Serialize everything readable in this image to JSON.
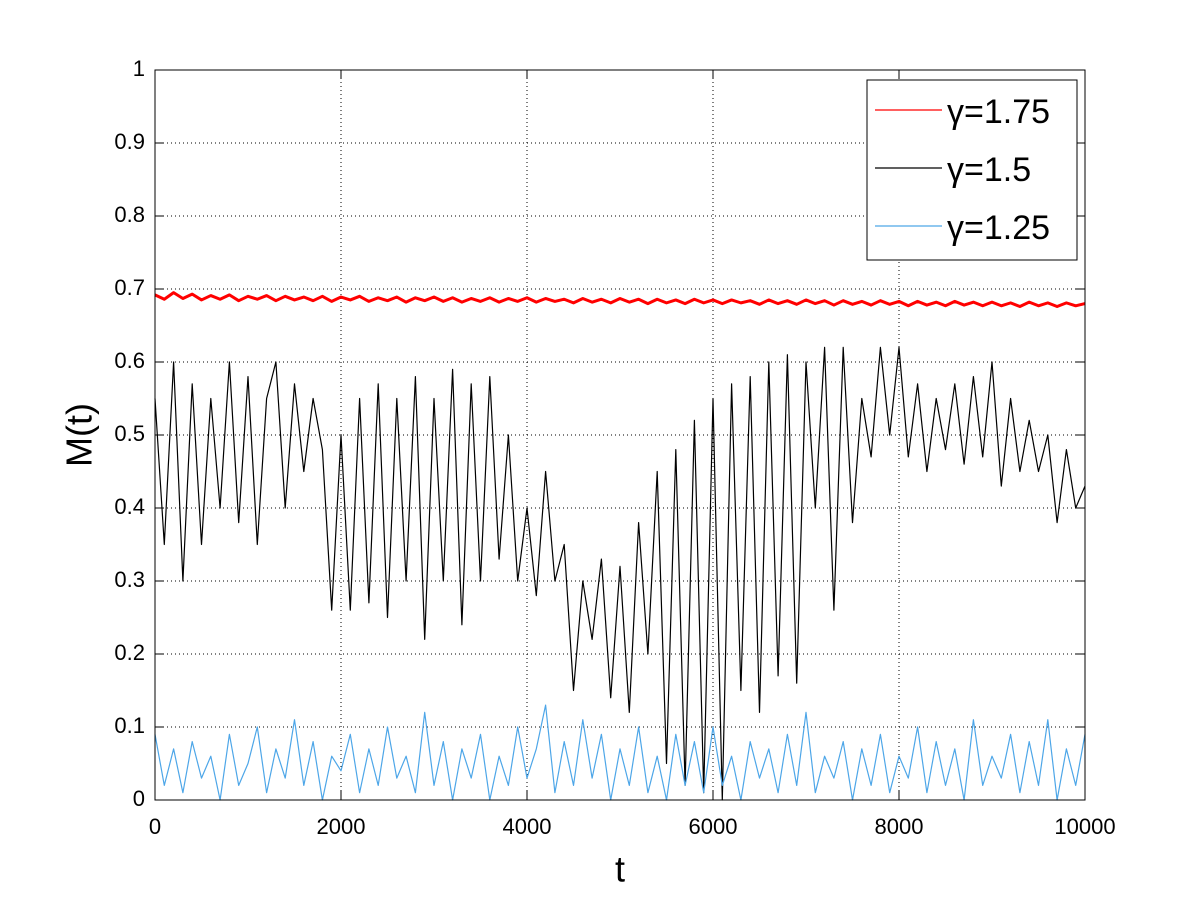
{
  "chart_data": {
    "type": "line",
    "xlabel": "t",
    "ylabel": "M(t)",
    "xlim": [
      0,
      10000
    ],
    "xticks": [
      0,
      2000,
      4000,
      6000,
      8000,
      10000
    ],
    "ylim": [
      0,
      1
    ],
    "yticks": [
      0,
      0.1,
      0.2,
      0.3,
      0.4,
      0.5,
      0.6,
      0.7,
      0.8,
      0.9,
      1
    ],
    "grid": true,
    "legend_position": "northeast",
    "x": [
      0,
      100,
      200,
      300,
      400,
      500,
      600,
      700,
      800,
      900,
      1000,
      1100,
      1200,
      1300,
      1400,
      1500,
      1600,
      1700,
      1800,
      1900,
      2000,
      2100,
      2200,
      2300,
      2400,
      2500,
      2600,
      2700,
      2800,
      2900,
      3000,
      3100,
      3200,
      3300,
      3400,
      3500,
      3600,
      3700,
      3800,
      3900,
      4000,
      4100,
      4200,
      4300,
      4400,
      4500,
      4600,
      4700,
      4800,
      4900,
      5000,
      5100,
      5200,
      5300,
      5400,
      5500,
      5600,
      5700,
      5800,
      5900,
      6000,
      6100,
      6200,
      6300,
      6400,
      6500,
      6600,
      6700,
      6800,
      6900,
      7000,
      7100,
      7200,
      7300,
      7400,
      7500,
      7600,
      7700,
      7800,
      7900,
      8000,
      8100,
      8200,
      8300,
      8400,
      8500,
      8600,
      8700,
      8800,
      8900,
      9000,
      9100,
      9200,
      9300,
      9400,
      9500,
      9600,
      9700,
      9800,
      9900,
      10000
    ],
    "series": [
      {
        "name": "γ=1.75",
        "color": "#ff0000",
        "values": [
          0.692,
          0.686,
          0.695,
          0.687,
          0.693,
          0.685,
          0.691,
          0.686,
          0.692,
          0.684,
          0.69,
          0.686,
          0.691,
          0.684,
          0.69,
          0.685,
          0.689,
          0.684,
          0.69,
          0.683,
          0.689,
          0.685,
          0.69,
          0.683,
          0.688,
          0.684,
          0.689,
          0.682,
          0.688,
          0.684,
          0.689,
          0.683,
          0.688,
          0.682,
          0.687,
          0.683,
          0.688,
          0.682,
          0.687,
          0.683,
          0.688,
          0.682,
          0.687,
          0.683,
          0.686,
          0.681,
          0.687,
          0.682,
          0.686,
          0.681,
          0.687,
          0.682,
          0.686,
          0.68,
          0.686,
          0.681,
          0.685,
          0.68,
          0.686,
          0.681,
          0.685,
          0.68,
          0.685,
          0.681,
          0.684,
          0.679,
          0.685,
          0.68,
          0.684,
          0.679,
          0.685,
          0.68,
          0.684,
          0.678,
          0.684,
          0.679,
          0.683,
          0.678,
          0.684,
          0.679,
          0.683,
          0.677,
          0.683,
          0.678,
          0.682,
          0.677,
          0.683,
          0.678,
          0.682,
          0.677,
          0.682,
          0.677,
          0.681,
          0.676,
          0.682,
          0.677,
          0.681,
          0.676,
          0.681,
          0.677,
          0.68
        ]
      },
      {
        "name": "γ=1.5",
        "color": "#000000",
        "values": [
          0.55,
          0.35,
          0.6,
          0.3,
          0.57,
          0.35,
          0.55,
          0.4,
          0.6,
          0.38,
          0.58,
          0.35,
          0.55,
          0.6,
          0.4,
          0.57,
          0.45,
          0.55,
          0.48,
          0.26,
          0.5,
          0.26,
          0.55,
          0.27,
          0.57,
          0.25,
          0.55,
          0.3,
          0.58,
          0.22,
          0.55,
          0.3,
          0.59,
          0.24,
          0.57,
          0.3,
          0.58,
          0.33,
          0.5,
          0.3,
          0.4,
          0.28,
          0.45,
          0.3,
          0.35,
          0.15,
          0.3,
          0.22,
          0.33,
          0.14,
          0.32,
          0.12,
          0.38,
          0.2,
          0.45,
          0.05,
          0.48,
          0.02,
          0.52,
          0.01,
          0.55,
          0.0,
          0.57,
          0.15,
          0.58,
          0.12,
          0.6,
          0.17,
          0.61,
          0.16,
          0.6,
          0.4,
          0.62,
          0.26,
          0.62,
          0.38,
          0.55,
          0.47,
          0.62,
          0.5,
          0.62,
          0.47,
          0.57,
          0.45,
          0.55,
          0.48,
          0.57,
          0.46,
          0.58,
          0.47,
          0.6,
          0.43,
          0.55,
          0.45,
          0.52,
          0.45,
          0.5,
          0.38,
          0.48,
          0.4,
          0.43
        ]
      },
      {
        "name": "γ=1.25",
        "color": "#4da6e8",
        "values": [
          0.09,
          0.02,
          0.07,
          0.01,
          0.08,
          0.03,
          0.06,
          0.0,
          0.09,
          0.02,
          0.05,
          0.1,
          0.01,
          0.07,
          0.03,
          0.11,
          0.02,
          0.08,
          0.0,
          0.06,
          0.04,
          0.09,
          0.01,
          0.07,
          0.02,
          0.1,
          0.03,
          0.06,
          0.01,
          0.12,
          0.02,
          0.08,
          0.0,
          0.07,
          0.03,
          0.09,
          0.0,
          0.06,
          0.02,
          0.1,
          0.03,
          0.07,
          0.13,
          0.01,
          0.08,
          0.02,
          0.11,
          0.03,
          0.09,
          0.0,
          0.07,
          0.02,
          0.1,
          0.01,
          0.06,
          0.0,
          0.09,
          0.02,
          0.08,
          0.01,
          0.1,
          0.02,
          0.06,
          0.0,
          0.08,
          0.03,
          0.07,
          0.01,
          0.09,
          0.02,
          0.12,
          0.01,
          0.06,
          0.03,
          0.08,
          0.0,
          0.07,
          0.02,
          0.09,
          0.01,
          0.06,
          0.03,
          0.1,
          0.01,
          0.08,
          0.02,
          0.07,
          0.0,
          0.11,
          0.02,
          0.06,
          0.03,
          0.09,
          0.01,
          0.08,
          0.02,
          0.11,
          0.0,
          0.07,
          0.02,
          0.09
        ]
      }
    ]
  }
}
